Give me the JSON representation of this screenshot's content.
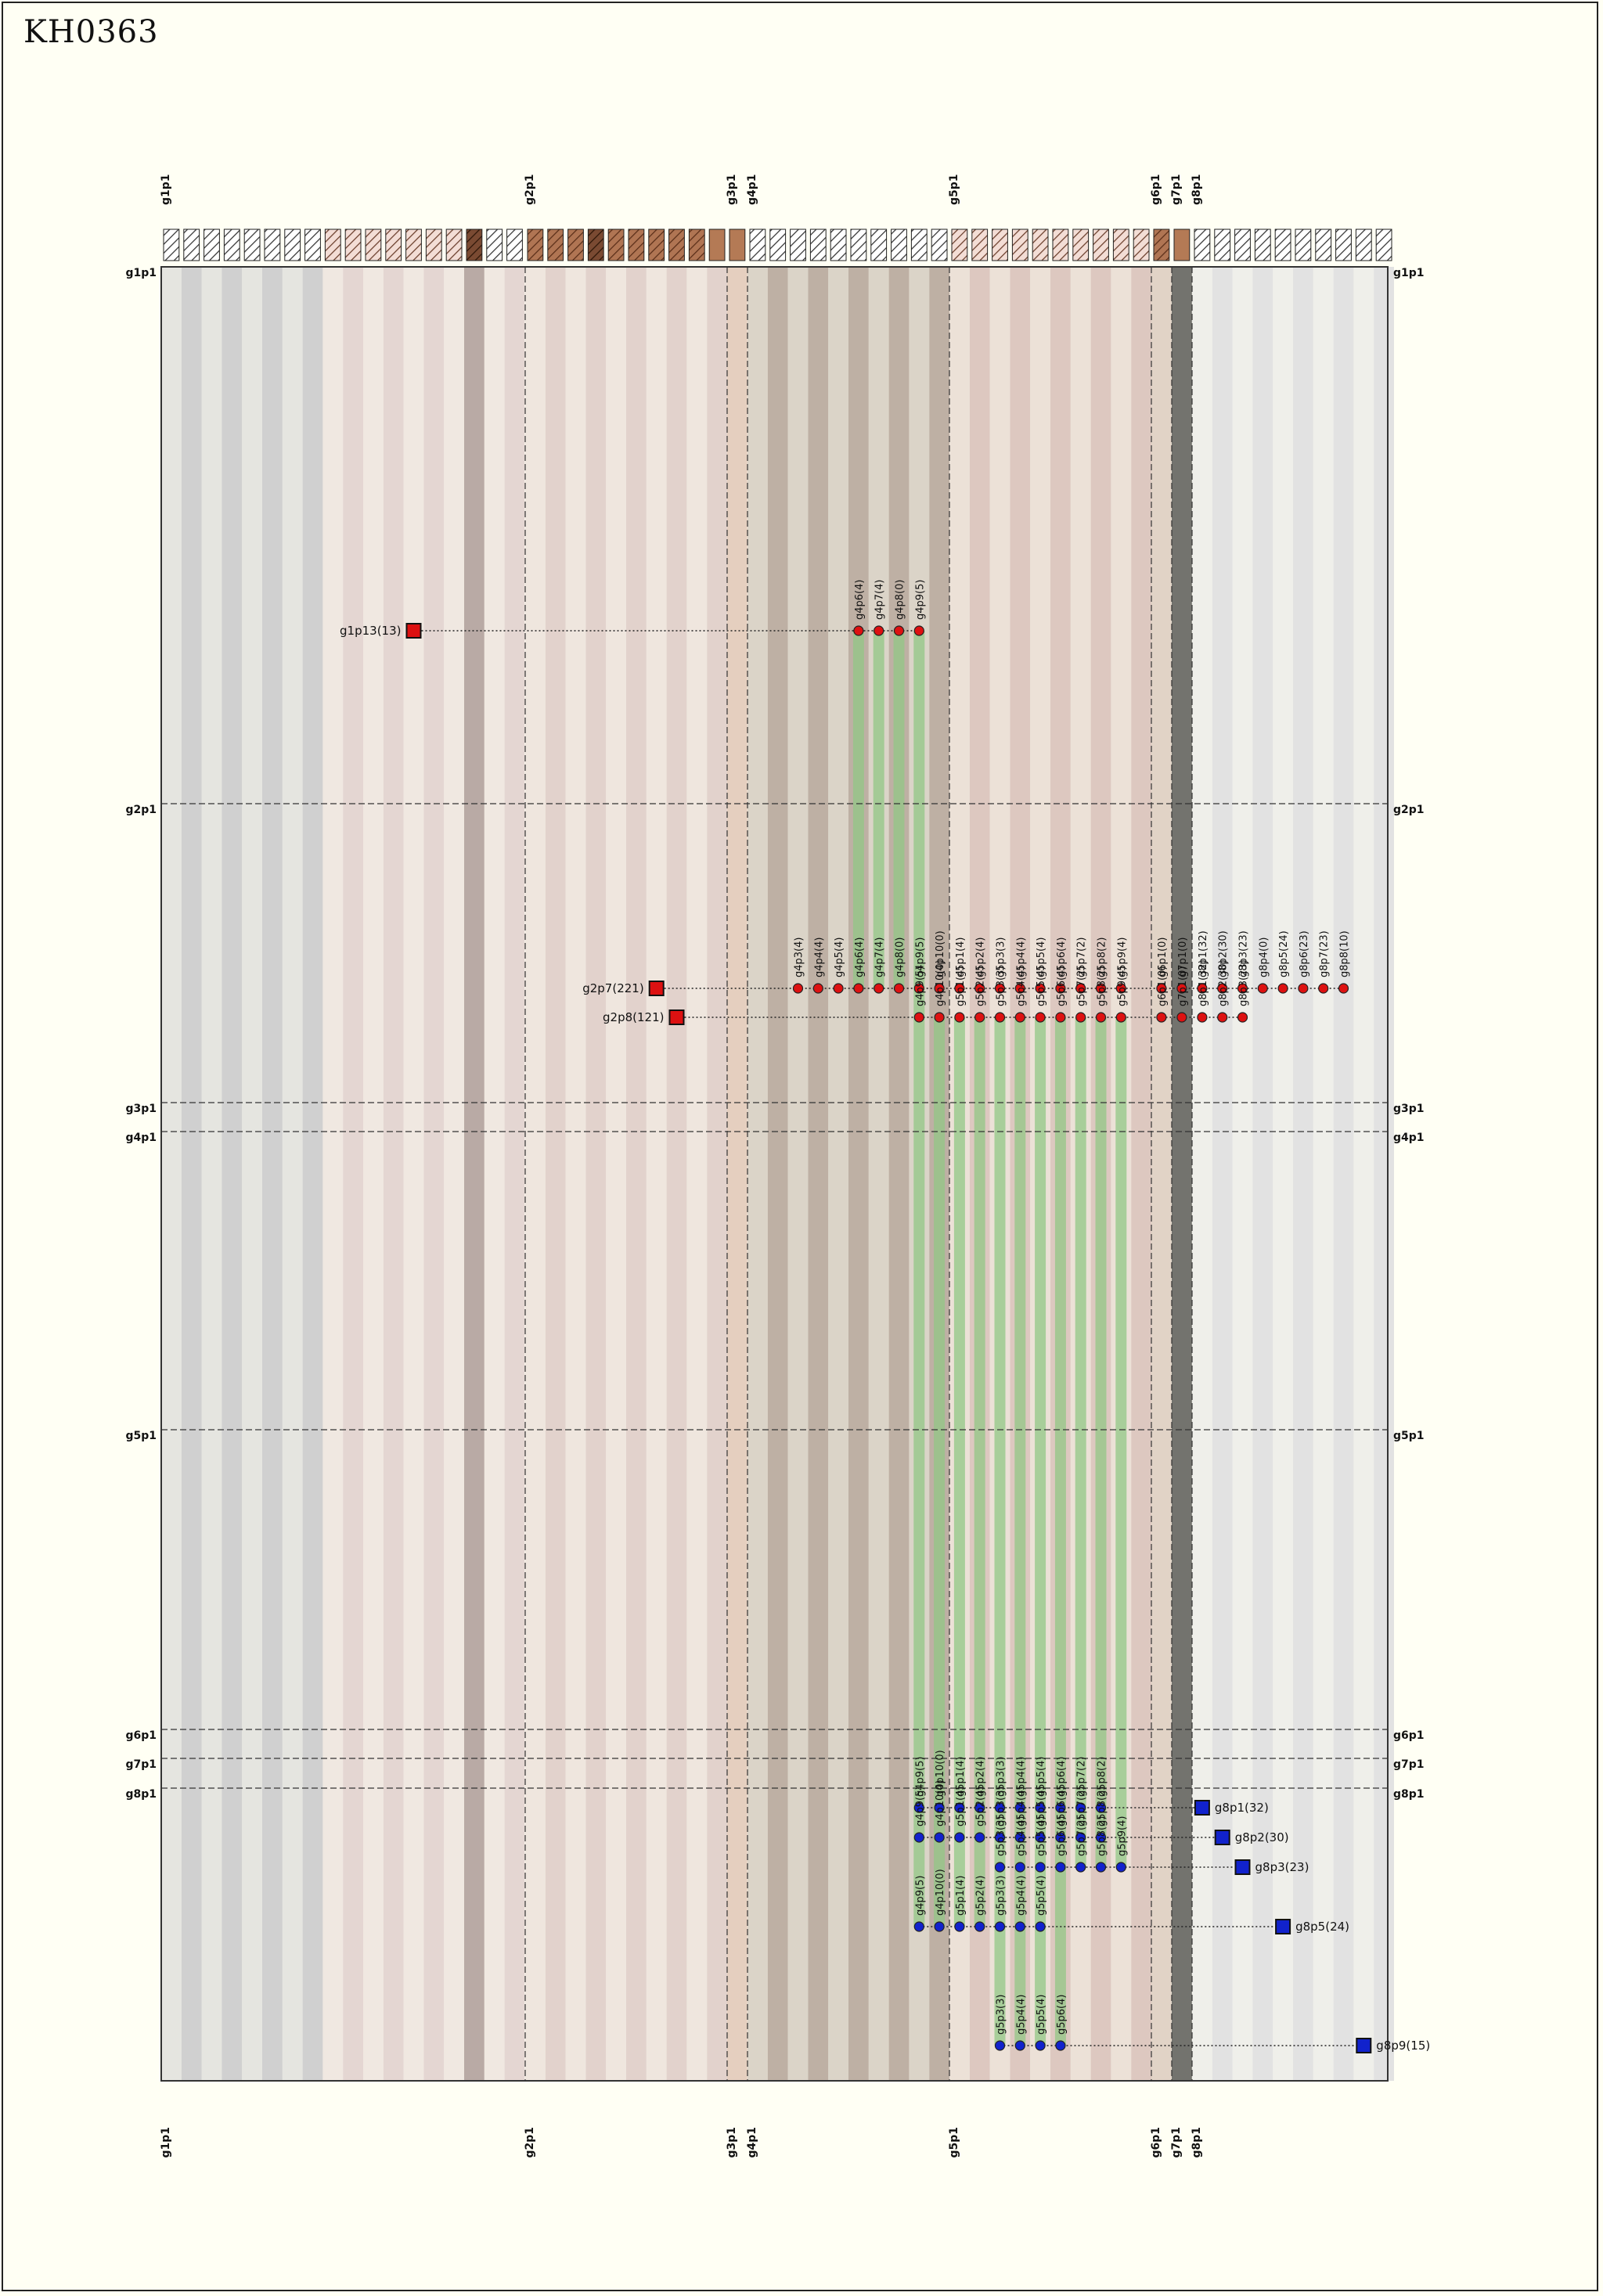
{
  "title": "KH0363",
  "colors": {
    "g1": "#d0d0d0",
    "g2": "#e2d2cc",
    "g3": "#cfa893",
    "g4": "#beb0a4",
    "g5": "#ddc8c0",
    "g6": "#c8aea1",
    "g8": "#e2e2e2",
    "green": "#92c786",
    "red": "#dd1111",
    "blue": "#1122cc"
  },
  "groups_x": [
    {
      "key": "g1",
      "label": "g1p1",
      "count": 18
    },
    {
      "key": "g2",
      "label": "g2p1",
      "count": 10
    },
    {
      "key": "g3",
      "label": "g3p1",
      "count": 1
    },
    {
      "key": "g4",
      "label": "g4p1",
      "count": 10
    },
    {
      "key": "g5",
      "label": "g5p1",
      "count": 10
    },
    {
      "key": "g6",
      "label": "g6p1",
      "count": 1
    },
    {
      "key": "g7",
      "label": "g7p1",
      "count": 1
    },
    {
      "key": "g8",
      "label": "g8p1",
      "count": 10
    }
  ],
  "groups_y": [
    {
      "label": "g1p1"
    },
    {
      "label": "g2p1"
    },
    {
      "label": "g3p1"
    },
    {
      "label": "g4p1"
    },
    {
      "label": "g5p1"
    },
    {
      "label": "g6p1"
    },
    {
      "label": "g7p1"
    },
    {
      "label": "g8p1"
    }
  ],
  "top_markers": [
    {
      "label": "g1p13(13)",
      "color": "red",
      "labels": [
        "g4p6(4)",
        "g4p7(4)",
        "g4p8(0)",
        "g4p9(5)"
      ]
    },
    {
      "label": "g2p7(221)",
      "color": "red",
      "labels": [
        "g4p3(4)",
        "g4p4(4)",
        "g4p5(4)",
        "g4p6(4)",
        "g4p7(4)",
        "g4p8(0)",
        "g4p9(5)",
        "g4p10(0)",
        "g5p1(4)",
        "g5p2(4)",
        "g5p3(3)",
        "g5p4(4)",
        "g5p5(4)",
        "g5p6(4)",
        "g5p7(2)",
        "g5p8(2)",
        "g5p9(4)",
        "g6p1(0)",
        "g7p1(0)",
        "g8p1(32)",
        "g8p2(30)",
        "g8p3(23)",
        "g8p4(0)",
        "g8p5(24)",
        "g8p6(23)",
        "g8p7(23)",
        "g8p8(10)"
      ]
    },
    {
      "label": "g2p8(121)",
      "color": "red",
      "labels": [
        "g4p9(5)",
        "g4p10(0)",
        "g5p1(4)",
        "g5p2(4)",
        "g5p3(3)",
        "g5p4(4)",
        "g5p5(4)",
        "g5p6(4)",
        "g5p7(2)",
        "g5p8(2)",
        "g5p9(4)",
        "g6p1(0)",
        "g7p1(0)",
        "g8p1(32)",
        "g8p2(30)",
        "g8p3(23)"
      ]
    }
  ],
  "bottom_markers": [
    {
      "label": "g8p1(32)",
      "color": "blue",
      "labels": [
        "g4p9(5)",
        "g4p10(0)",
        "g5p1(4)",
        "g5p2(4)",
        "g5p3(3)",
        "g5p4(4)",
        "g5p5(4)",
        "g5p6(4)",
        "g5p7(2)",
        "g5p8(2)"
      ]
    },
    {
      "label": "g8p2(30)",
      "color": "blue",
      "labels": [
        "g4p9(5)",
        "g4p10(0)",
        "g5p1(4)",
        "g5p2(4)",
        "g5p3(3)",
        "g5p4(4)",
        "g5p5(4)",
        "g5p6(4)",
        "g5p7(2)",
        "g5p8(2)"
      ]
    },
    {
      "label": "g8p3(23)",
      "color": "blue",
      "labels": [
        "g5p3(3)",
        "g5p4(4)",
        "g5p5(4)",
        "g5p6(4)",
        "g5p7(2)",
        "g5p8(2)",
        "g5p9(4)"
      ]
    },
    {
      "label": "g8p5(24)",
      "color": "blue",
      "labels": [
        "g4p9(5)",
        "g4p10(0)",
        "g5p1(4)",
        "g5p2(4)",
        "g5p3(3)",
        "g5p4(4)",
        "g5p5(4)"
      ]
    },
    {
      "label": "g8p9(15)",
      "color": "blue",
      "labels": [
        "g5p3(3)",
        "g5p4(4)",
        "g5p5(4)",
        "g5p6(4)"
      ]
    }
  ]
}
